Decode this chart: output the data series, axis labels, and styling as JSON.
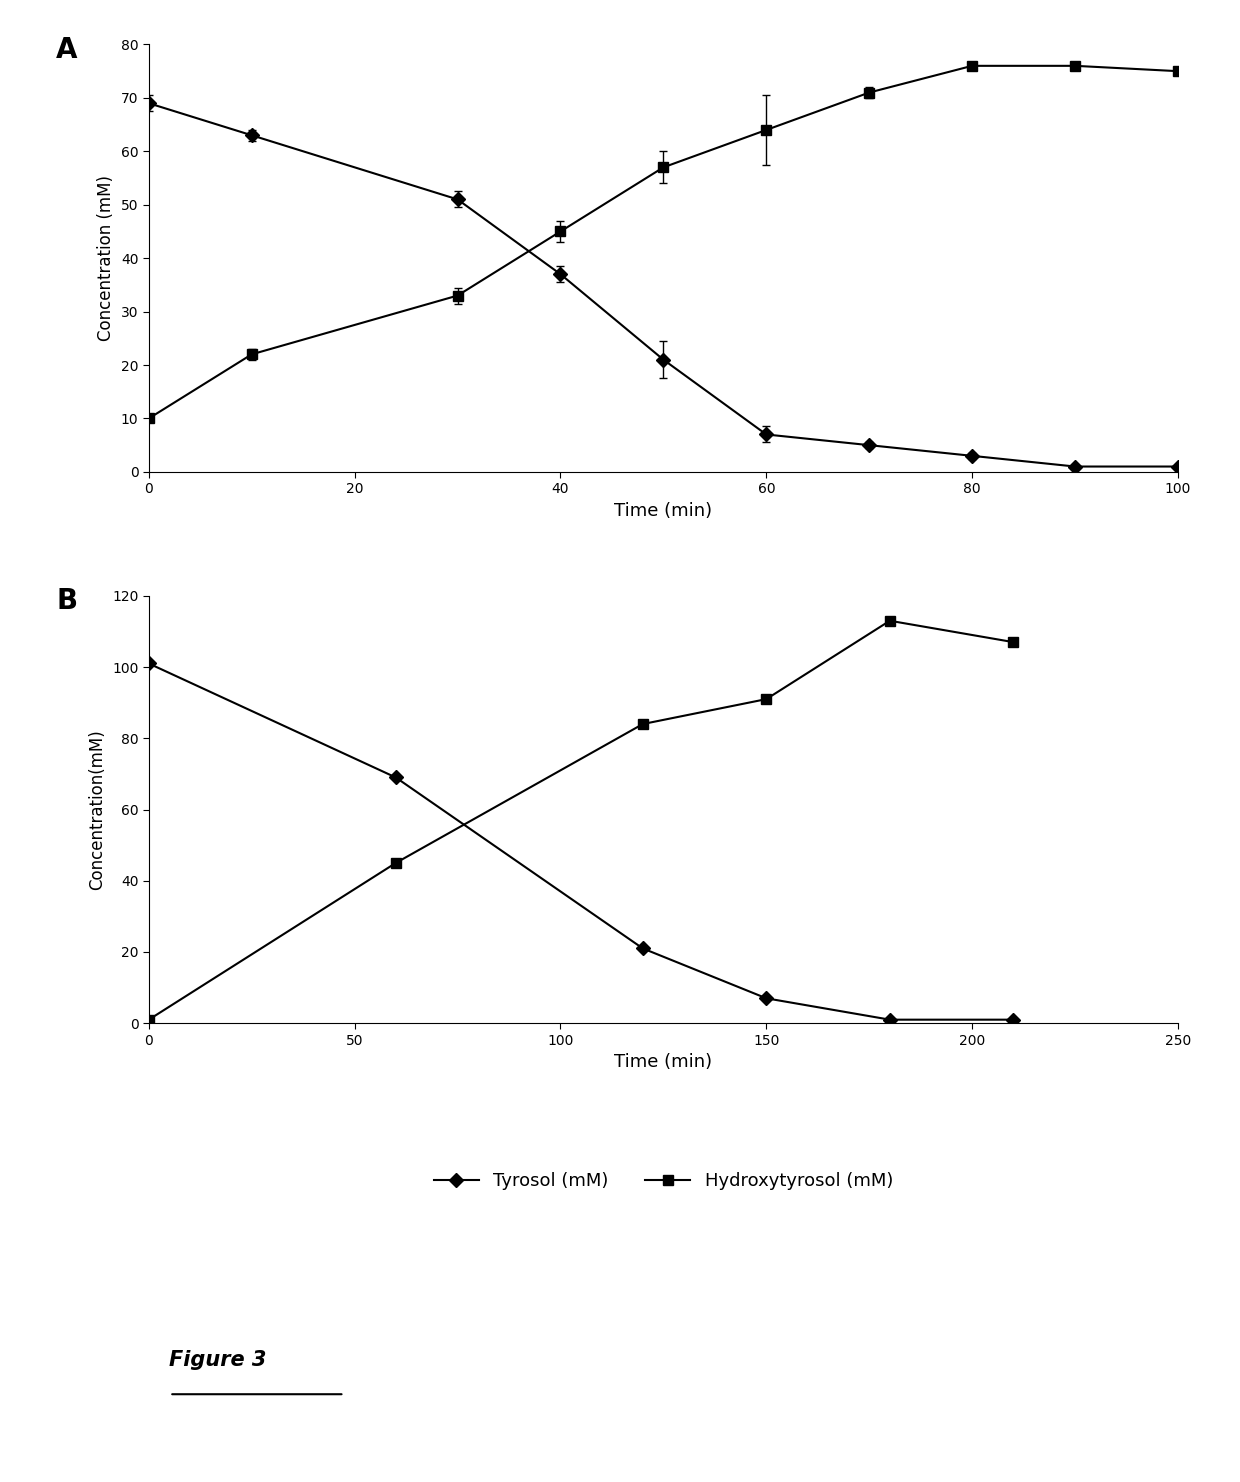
{
  "panel_A": {
    "label": "A",
    "tyrosol_x": [
      0,
      10,
      30,
      40,
      50,
      60,
      70,
      80,
      90,
      100
    ],
    "tyrosol_y": [
      69,
      63,
      51,
      37,
      21,
      7,
      5,
      3,
      1,
      1
    ],
    "tyrosol_yerr": [
      1.5,
      1.0,
      1.5,
      1.5,
      3.5,
      1.5,
      0.5,
      0.5,
      0.3,
      0.3
    ],
    "hydroxytyrosol_x": [
      0,
      10,
      30,
      40,
      50,
      60,
      70,
      80,
      90,
      100
    ],
    "hydroxytyrosol_y": [
      10,
      22,
      33,
      45,
      57,
      64,
      71,
      76,
      76,
      75
    ],
    "hydroxytyrosol_yerr": [
      0.5,
      1.0,
      1.5,
      2.0,
      3.0,
      6.5,
      1.0,
      0.8,
      0.8,
      0.8
    ],
    "xlabel": "Time (min)",
    "ylabel": "Concentration (mM)",
    "xlim": [
      0,
      100
    ],
    "ylim": [
      0,
      80
    ],
    "yticks": [
      0,
      10,
      20,
      30,
      40,
      50,
      60,
      70,
      80
    ],
    "xticks": [
      0,
      20,
      40,
      60,
      80,
      100
    ]
  },
  "panel_B": {
    "label": "B",
    "tyrosol_x": [
      0,
      60,
      120,
      150,
      180,
      210
    ],
    "tyrosol_y": [
      101,
      69,
      21,
      7,
      1,
      1
    ],
    "hydroxytyrosol_x": [
      0,
      60,
      120,
      150,
      180,
      210
    ],
    "hydroxytyrosol_y": [
      1,
      45,
      84,
      91,
      113,
      107
    ],
    "xlabel": "Time (min)",
    "ylabel": "Concentration(mM)",
    "xlim": [
      0,
      250
    ],
    "ylim": [
      0,
      120
    ],
    "yticks": [
      0,
      20,
      40,
      60,
      80,
      100,
      120
    ],
    "xticks": [
      0,
      50,
      100,
      150,
      200,
      250
    ]
  },
  "legend": {
    "tyrosol_label": "Tyrosol (mM)",
    "hydroxytyrosol_label": "Hydroxytyrosol (mM)"
  },
  "figure_label": "Figure 3",
  "line_color": "#000000",
  "markersize": 7,
  "linewidth": 1.5
}
